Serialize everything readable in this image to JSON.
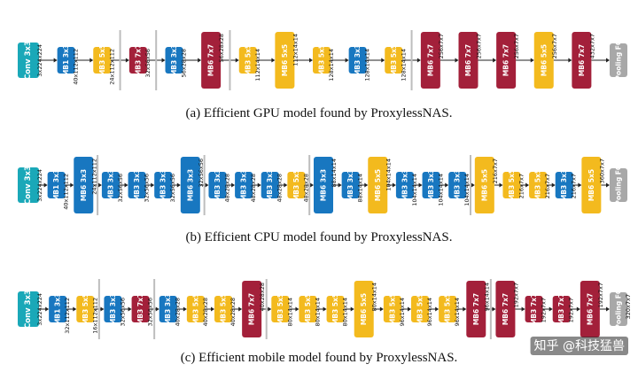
{
  "colors": {
    "conv": "#1aa8b8",
    "mb1": "#1877c0",
    "mb3": "#f3ba1e",
    "mb6": "#1877c0",
    "mb7": "#a3203a",
    "mb6_7": "#a3203a",
    "pool": "#a8a8a8",
    "arrow": "#222222",
    "separator": "#bdbdbd"
  },
  "panels": [
    {
      "caption": "(a) Efficient GPU model found by ProxylessNAS.",
      "blocks": [
        {
          "label": "Conv 3x3",
          "color": "conv",
          "size": "conv",
          "shape": "3x224x224"
        },
        {
          "label": "MB1 3x3",
          "color": "mb1",
          "size": "s",
          "shape": "40x112x112"
        },
        {
          "label": "MB3 5x5",
          "color": "mb3",
          "size": "s",
          "shape": "24x112x112"
        },
        {
          "label": "MB3 7x7",
          "color": "mb7",
          "size": "s",
          "shape": "32x56x56"
        },
        {
          "label": "MB3 3x3",
          "color": "mb1",
          "size": "s",
          "shape": "56x28x28"
        },
        {
          "label": "MB6 7x7",
          "color": "mb6_7",
          "size": "l",
          "shape": "56x28x28"
        },
        {
          "label": "MB3 5x5",
          "color": "mb3",
          "size": "s",
          "shape": "112x14x14"
        },
        {
          "label": "MB6 5x5",
          "color": "mb3",
          "size": "l",
          "shape": "112x14x14"
        },
        {
          "label": "MB3 5x5",
          "color": "mb3",
          "size": "s",
          "shape": "128x14x14"
        },
        {
          "label": "MB3 3x3",
          "color": "mb1",
          "size": "s",
          "shape": "128x14x14"
        },
        {
          "label": "MB3 5x5",
          "color": "mb3",
          "size": "s",
          "shape": "128x14x14"
        },
        {
          "label": "MB6 7x7",
          "color": "mb6_7",
          "size": "l",
          "shape": "256x7x7"
        },
        {
          "label": "MB6 7x7",
          "color": "mb6_7",
          "size": "l",
          "shape": "256x7x7"
        },
        {
          "label": "MB6 7x7",
          "color": "mb6_7",
          "size": "l",
          "shape": "256x7x7"
        },
        {
          "label": "MB6 5x5",
          "color": "mb3",
          "size": "l",
          "shape": "256x7x7"
        },
        {
          "label": "MB6 7x7",
          "color": "mb6_7",
          "size": "l",
          "shape": "432x7x7"
        },
        {
          "label": "Pooling FC",
          "color": "pool",
          "size": "pool",
          "shape": ""
        }
      ]
    },
    {
      "caption": "(b) Efficient CPU model found by ProxylessNAS.",
      "blocks": [
        {
          "label": "Conv 3x3",
          "color": "conv",
          "size": "conv",
          "shape": "3x224x224"
        },
        {
          "label": "MB1 3x3",
          "color": "mb1",
          "size": "s",
          "shape": "40x112x112"
        },
        {
          "label": "MB6 3x3",
          "color": "mb6",
          "size": "l",
          "shape": "24x112x112"
        },
        {
          "label": "MB3 3x3",
          "color": "mb1",
          "size": "s",
          "shape": "32x56x56"
        },
        {
          "label": "MB3 3x3",
          "color": "mb1",
          "size": "s",
          "shape": "32x56x56"
        },
        {
          "label": "MB3 3x3",
          "color": "mb1",
          "size": "s",
          "shape": "32x56x56"
        },
        {
          "label": "MB6 3x3",
          "color": "mb6",
          "size": "l",
          "shape": "32x56x56"
        },
        {
          "label": "MB3 3x3",
          "color": "mb1",
          "size": "s",
          "shape": "48x28x28"
        },
        {
          "label": "MB3 3x3",
          "color": "mb1",
          "size": "s",
          "shape": "48x28x28"
        },
        {
          "label": "MB3 3x3",
          "color": "mb1",
          "size": "s",
          "shape": "48x28x28"
        },
        {
          "label": "MB3 5x5",
          "color": "mb3",
          "size": "s",
          "shape": "48x28x28"
        },
        {
          "label": "MB6 3x3",
          "color": "mb6",
          "size": "l",
          "shape": "88x14x14"
        },
        {
          "label": "MB3 3x3",
          "color": "mb1",
          "size": "s",
          "shape": "88x14x14"
        },
        {
          "label": "MB6 5x5",
          "color": "mb3",
          "size": "l",
          "shape": "104x14x14"
        },
        {
          "label": "MB3 3x3",
          "color": "mb1",
          "size": "s",
          "shape": "104x14x14"
        },
        {
          "label": "MB3 3x3",
          "color": "mb1",
          "size": "s",
          "shape": "104x14x14"
        },
        {
          "label": "MB3 3x3",
          "color": "mb1",
          "size": "s",
          "shape": "104x14x14"
        },
        {
          "label": "MB6 5x5",
          "color": "mb3",
          "size": "l",
          "shape": "216x7x7"
        },
        {
          "label": "MB3 5x5",
          "color": "mb3",
          "size": "s",
          "shape": "216x7x7"
        },
        {
          "label": "MB3 5x5",
          "color": "mb3",
          "size": "s",
          "shape": "216x7x7"
        },
        {
          "label": "MB3 3x3",
          "color": "mb1",
          "size": "s",
          "shape": "216x7x7"
        },
        {
          "label": "MB6 5x5",
          "color": "mb3",
          "size": "l",
          "shape": "360x7x7"
        },
        {
          "label": "Pooling FC",
          "color": "pool",
          "size": "pool",
          "shape": ""
        }
      ]
    },
    {
      "caption": "(c) Efficient mobile model found by ProxylessNAS.",
      "blocks": [
        {
          "label": "Conv 3x3",
          "color": "conv",
          "size": "conv",
          "shape": "3x224x224"
        },
        {
          "label": "MB1 3x3",
          "color": "mb1",
          "size": "s",
          "shape": "32x112x112"
        },
        {
          "label": "MB3 5x5",
          "color": "mb3",
          "size": "s",
          "shape": "16x112x112"
        },
        {
          "label": "MB3 3x3",
          "color": "mb1",
          "size": "s",
          "shape": "32x56x56"
        },
        {
          "label": "MB3 7x7",
          "color": "mb7",
          "size": "s",
          "shape": "32x56x56"
        },
        {
          "label": "MB3 3x3",
          "color": "mb1",
          "size": "s",
          "shape": "40x28x28"
        },
        {
          "label": "MB3 5x5",
          "color": "mb3",
          "size": "s",
          "shape": "40x28x28"
        },
        {
          "label": "MB3 5x5",
          "color": "mb3",
          "size": "s",
          "shape": "40x28x28"
        },
        {
          "label": "MB6 7x7",
          "color": "mb6_7",
          "size": "l",
          "shape": "40x28x28"
        },
        {
          "label": "MB3 5x5",
          "color": "mb3",
          "size": "s",
          "shape": "80x14x14"
        },
        {
          "label": "MB3 5x5",
          "color": "mb3",
          "size": "s",
          "shape": "80x14x14"
        },
        {
          "label": "MB3 5x5",
          "color": "mb3",
          "size": "s",
          "shape": "80x14x14"
        },
        {
          "label": "MB6 5x5",
          "color": "mb3",
          "size": "l",
          "shape": "80x14x14"
        },
        {
          "label": "MB3 5x5",
          "color": "mb3",
          "size": "s",
          "shape": "96x14x14"
        },
        {
          "label": "MB3 5x5",
          "color": "mb3",
          "size": "s",
          "shape": "96x14x14"
        },
        {
          "label": "MB3 5x5",
          "color": "mb3",
          "size": "s",
          "shape": "96x14x14"
        },
        {
          "label": "MB6 7x7",
          "color": "mb6_7",
          "size": "l",
          "shape": "96x14x14"
        },
        {
          "label": "MB6 7x7",
          "color": "mb6_7",
          "size": "l",
          "shape": "192x7x7"
        },
        {
          "label": "MB3 7x7",
          "color": "mb7",
          "size": "s",
          "shape": "192x7x7"
        },
        {
          "label": "MB3 7x7",
          "color": "mb7",
          "size": "s",
          "shape": "192x7x7"
        },
        {
          "label": "MB6 7x7",
          "color": "mb6_7",
          "size": "l",
          "shape": "192x7x7"
        },
        {
          "label": "Pooling FC",
          "color": "pool",
          "size": "pool",
          "shape": "320x7x7"
        }
      ]
    }
  ],
  "watermark": "知乎 @科技猛兽"
}
